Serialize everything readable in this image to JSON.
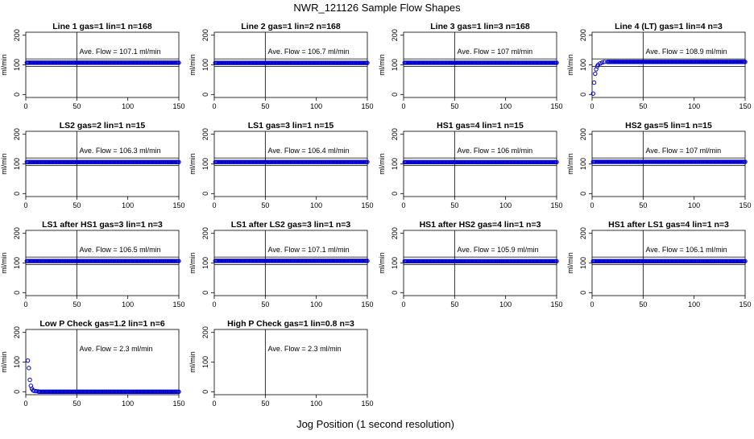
{
  "figure": {
    "title": "NWR_121126  Sample Flow Shapes",
    "xlabel": "Jog Position (1 second resolution)"
  },
  "style": {
    "point_color": "#0000cc",
    "axis_color": "#000000",
    "marker": "open-circle"
  },
  "chart_data": [
    {
      "type": "scatter",
      "title": "Line 1 gas=1 lin=1 n=168",
      "ylabel": "ml/min",
      "annotation": "Ave. Flow =  107.1  ml/min",
      "xlim": [
        0,
        150
      ],
      "ylim": [
        -10,
        210
      ],
      "xticks": [
        0,
        50,
        100,
        150
      ],
      "yticks": [
        0,
        100,
        200
      ],
      "vline": 50,
      "hlines": [
        95,
        120
      ],
      "series": [
        {
          "shape": "flat",
          "x": [
            1,
            150
          ],
          "y": [
            107.1,
            107.1
          ]
        }
      ]
    },
    {
      "type": "scatter",
      "title": "Line 2 gas=1 lin=2 n=168",
      "ylabel": "ml/min",
      "annotation": "Ave. Flow =  106.7  ml/min",
      "xlim": [
        0,
        150
      ],
      "ylim": [
        -10,
        210
      ],
      "xticks": [
        0,
        50,
        100,
        150
      ],
      "yticks": [
        0,
        100,
        200
      ],
      "vline": 50,
      "hlines": [
        95,
        120
      ],
      "series": [
        {
          "shape": "flat",
          "x": [
            1,
            150
          ],
          "y": [
            106.7,
            106.7
          ]
        }
      ]
    },
    {
      "type": "scatter",
      "title": "Line 3 gas=1 lin=3 n=168",
      "ylabel": "ml/min",
      "annotation": "Ave. Flow =  107  ml/min",
      "xlim": [
        0,
        150
      ],
      "ylim": [
        -10,
        210
      ],
      "xticks": [
        0,
        50,
        100,
        150
      ],
      "yticks": [
        0,
        100,
        200
      ],
      "vline": 50,
      "hlines": [
        95,
        120
      ],
      "series": [
        {
          "shape": "flat",
          "x": [
            1,
            150
          ],
          "y": [
            107,
            107
          ]
        }
      ]
    },
    {
      "type": "scatter",
      "title": "Line 4 (LT) gas=1 lin=4 n=3",
      "ylabel": "ml/min",
      "annotation": "Ave. Flow =  108.9  ml/min",
      "xlim": [
        0,
        150
      ],
      "ylim": [
        -10,
        210
      ],
      "xticks": [
        0,
        50,
        100,
        150
      ],
      "yticks": [
        0,
        100,
        200
      ],
      "vline": 50,
      "hlines": [
        95,
        120
      ],
      "series": [
        {
          "shape": "rise",
          "x": [
            1,
            2,
            3,
            4,
            5,
            6,
            8,
            10,
            12,
            15,
            150
          ],
          "y": [
            3,
            40,
            70,
            85,
            95,
            100,
            105,
            108,
            110,
            110,
            110
          ]
        }
      ]
    },
    {
      "type": "scatter",
      "title": "LS2 gas=2 lin=1 n=15",
      "ylabel": "ml/min",
      "annotation": "Ave. Flow =  106.3  ml/min",
      "xlim": [
        0,
        150
      ],
      "ylim": [
        -10,
        210
      ],
      "xticks": [
        0,
        50,
        100,
        150
      ],
      "yticks": [
        0,
        100,
        200
      ],
      "vline": 50,
      "hlines": [
        95,
        120
      ],
      "series": [
        {
          "shape": "flat",
          "x": [
            1,
            150
          ],
          "y": [
            106.3,
            106.3
          ]
        }
      ]
    },
    {
      "type": "scatter",
      "title": "LS1 gas=3 lin=1 n=15",
      "ylabel": "ml/min",
      "annotation": "Ave. Flow =  106.4  ml/min",
      "xlim": [
        0,
        150
      ],
      "ylim": [
        -10,
        210
      ],
      "xticks": [
        0,
        50,
        100,
        150
      ],
      "yticks": [
        0,
        100,
        200
      ],
      "vline": 50,
      "hlines": [
        95,
        120
      ],
      "series": [
        {
          "shape": "flat",
          "x": [
            1,
            150
          ],
          "y": [
            106.4,
            106.4
          ]
        }
      ]
    },
    {
      "type": "scatter",
      "title": "HS1 gas=4 lin=1 n=15",
      "ylabel": "ml/min",
      "annotation": "Ave. Flow =  106  ml/min",
      "xlim": [
        0,
        150
      ],
      "ylim": [
        -10,
        210
      ],
      "xticks": [
        0,
        50,
        100,
        150
      ],
      "yticks": [
        0,
        100,
        200
      ],
      "vline": 50,
      "hlines": [
        95,
        120
      ],
      "series": [
        {
          "shape": "flat",
          "x": [
            1,
            150
          ],
          "y": [
            106,
            106
          ]
        }
      ]
    },
    {
      "type": "scatter",
      "title": "HS2 gas=5 lin=1 n=15",
      "ylabel": "ml/min",
      "annotation": "Ave. Flow =  107  ml/min",
      "xlim": [
        0,
        150
      ],
      "ylim": [
        -10,
        210
      ],
      "xticks": [
        0,
        50,
        100,
        150
      ],
      "yticks": [
        0,
        100,
        200
      ],
      "vline": 50,
      "hlines": [
        95,
        120
      ],
      "series": [
        {
          "shape": "flat",
          "x": [
            1,
            150
          ],
          "y": [
            107,
            107
          ]
        }
      ]
    },
    {
      "type": "scatter",
      "title": "LS1 after HS1 gas=3 lin=1 n=3",
      "ylabel": "ml/min",
      "annotation": "Ave. Flow =  106.5  ml/min",
      "xlim": [
        0,
        150
      ],
      "ylim": [
        -10,
        210
      ],
      "xticks": [
        0,
        50,
        100,
        150
      ],
      "yticks": [
        0,
        100,
        200
      ],
      "vline": 50,
      "hlines": [
        95,
        120
      ],
      "series": [
        {
          "shape": "flat",
          "x": [
            1,
            150
          ],
          "y": [
            106.5,
            106.5
          ]
        }
      ]
    },
    {
      "type": "scatter",
      "title": "LS1 after LS2 gas=3 lin=1 n=3",
      "ylabel": "ml/min",
      "annotation": "Ave. Flow =  107.1  ml/min",
      "xlim": [
        0,
        150
      ],
      "ylim": [
        -10,
        210
      ],
      "xticks": [
        0,
        50,
        100,
        150
      ],
      "yticks": [
        0,
        100,
        200
      ],
      "vline": 50,
      "hlines": [
        95,
        120
      ],
      "series": [
        {
          "shape": "flat",
          "x": [
            1,
            150
          ],
          "y": [
            107.1,
            107.1
          ]
        }
      ]
    },
    {
      "type": "scatter",
      "title": "HS1 after HS2 gas=4 lin=1 n=3",
      "ylabel": "ml/min",
      "annotation": "Ave. Flow =  105.9  ml/min",
      "xlim": [
        0,
        150
      ],
      "ylim": [
        -10,
        210
      ],
      "xticks": [
        0,
        50,
        100,
        150
      ],
      "yticks": [
        0,
        100,
        200
      ],
      "vline": 50,
      "hlines": [
        95,
        120
      ],
      "series": [
        {
          "shape": "flat",
          "x": [
            1,
            150
          ],
          "y": [
            105.9,
            105.9
          ]
        }
      ]
    },
    {
      "type": "scatter",
      "title": "HS1 after LS1 gas=4 lin=1 n=3",
      "ylabel": "ml/min",
      "annotation": "Ave. Flow =  106.1  ml/min",
      "xlim": [
        0,
        150
      ],
      "ylim": [
        -10,
        210
      ],
      "xticks": [
        0,
        50,
        100,
        150
      ],
      "yticks": [
        0,
        100,
        200
      ],
      "vline": 50,
      "hlines": [
        95,
        120
      ],
      "series": [
        {
          "shape": "flat",
          "x": [
            1,
            150
          ],
          "y": [
            106.1,
            106.1
          ]
        }
      ]
    },
    {
      "type": "scatter",
      "title": "Low P Check gas=1.2 lin=1 n=6",
      "ylabel": "ml/min",
      "annotation": "Ave. Flow =  2.3  ml/min",
      "xlim": [
        0,
        150
      ],
      "ylim": [
        -10,
        210
      ],
      "xticks": [
        0,
        50,
        100,
        150
      ],
      "yticks": [
        0,
        100,
        200
      ],
      "vline": 50,
      "hlines": [],
      "series": [
        {
          "shape": "decay",
          "x": [
            2,
            3,
            4,
            5,
            6,
            7,
            8,
            10,
            12,
            150
          ],
          "y": [
            105,
            80,
            40,
            20,
            10,
            5,
            3,
            2,
            1,
            0
          ]
        }
      ]
    },
    {
      "type": "scatter",
      "title": "High P Check gas=1 lin=0.8 n=3",
      "ylabel": "ml/min",
      "annotation": "Ave. Flow =  2.3  ml/min",
      "xlim": [
        0,
        150
      ],
      "ylim": [
        -10,
        210
      ],
      "xticks": [
        0,
        50,
        100,
        150
      ],
      "yticks": [
        0,
        100,
        200
      ],
      "vline": 50,
      "hlines": [],
      "series": []
    }
  ]
}
